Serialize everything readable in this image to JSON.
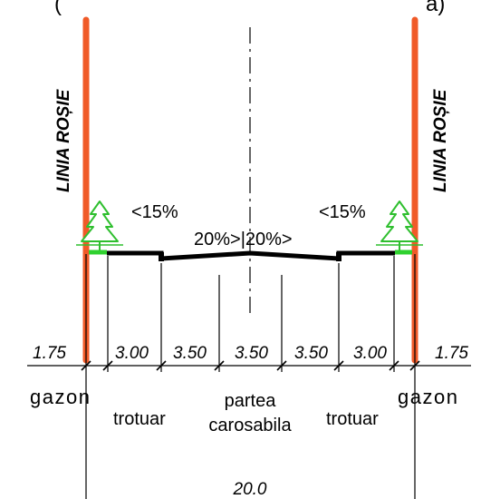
{
  "header_text": "(",
  "header_text_right": "a)",
  "red_line_label": "LINIA ROȘIE",
  "slope_left": "<15%",
  "slope_right": "<15%",
  "slope_center": "20%>|20%>",
  "dimensions": {
    "left_gazon": "1.75",
    "left_trotuar": "3.00",
    "lane_1": "3.50",
    "lane_2": "3.50",
    "lane_3": "3.50",
    "right_trotuar": "3.00",
    "right_gazon": "1.75",
    "total": "20.0"
  },
  "zones": {
    "left_gazon": "gazon",
    "left_trotuar": "trotuar",
    "carriageway_line1": "partea",
    "carriageway_line2": "carosabila",
    "right_trotuar": "trotuar",
    "right_gazon": "gazon"
  },
  "colors": {
    "red_line": "#f05a28",
    "grass": "#2fd12f",
    "tree": "#2fbf2f",
    "ink": "#000000"
  }
}
